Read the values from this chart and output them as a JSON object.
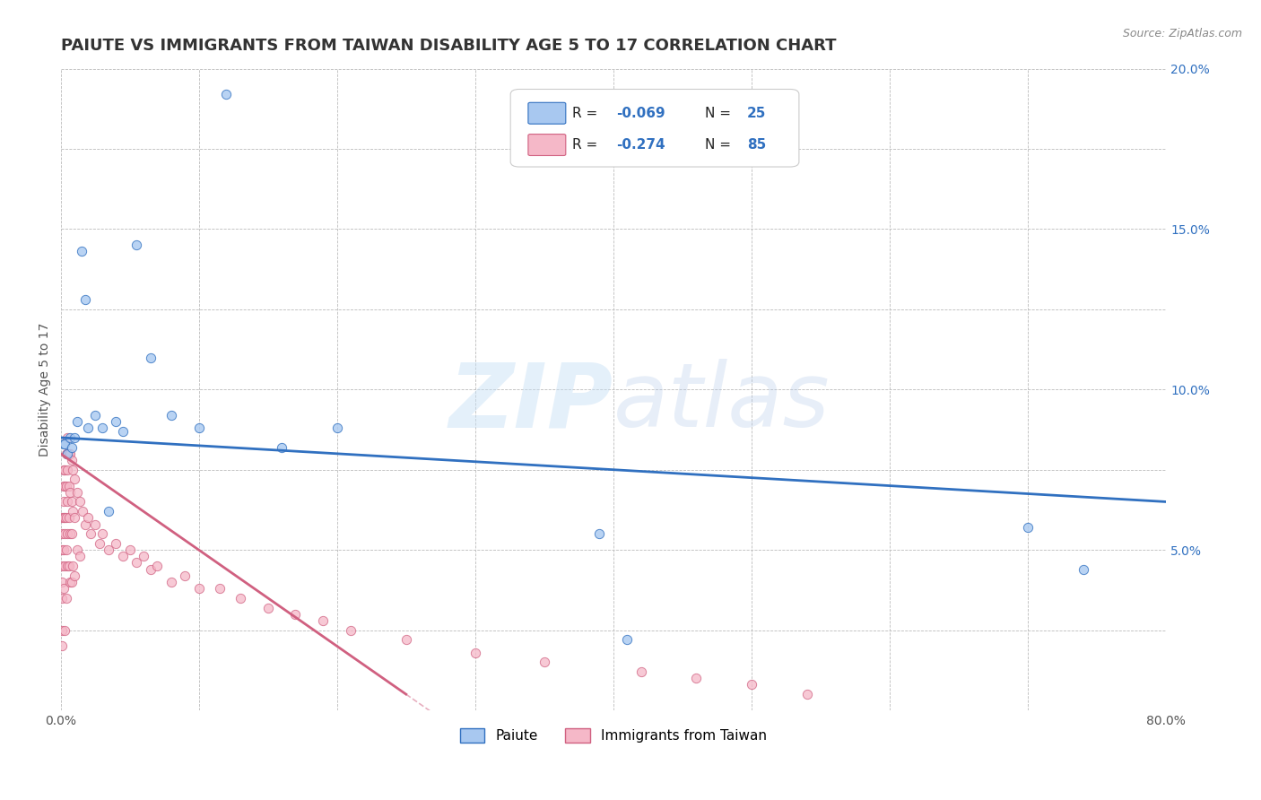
{
  "title": "PAIUTE VS IMMIGRANTS FROM TAIWAN DISABILITY AGE 5 TO 17 CORRELATION CHART",
  "source": "Source: ZipAtlas.com",
  "ylabel": "Disability Age 5 to 17",
  "xlim": [
    0,
    0.8
  ],
  "ylim": [
    0,
    0.2
  ],
  "paiute_color": "#a8c8f0",
  "taiwan_color": "#f5b8c8",
  "paiute_line_color": "#3070c0",
  "taiwan_line_color": "#d06080",
  "watermark_zip": "ZIP",
  "watermark_atlas": "atlas",
  "legend_label_paiute": "Paiute",
  "legend_label_taiwan": "Immigrants from Taiwan",
  "background_color": "#ffffff",
  "grid_color": "#bbbbbb",
  "title_color": "#333333",
  "axis_color": "#555555",
  "value_color": "#3070c0",
  "title_fontsize": 13,
  "label_fontsize": 10,
  "tick_fontsize": 10,
  "legend_fontsize": 11,
  "paiute_x": [
    0.002,
    0.003,
    0.005,
    0.007,
    0.008,
    0.01,
    0.012,
    0.015,
    0.018,
    0.02,
    0.025,
    0.03,
    0.035,
    0.04,
    0.045,
    0.055,
    0.065,
    0.08,
    0.1,
    0.12,
    0.16,
    0.2,
    0.39,
    0.41,
    0.7,
    0.74
  ],
  "paiute_y": [
    0.083,
    0.083,
    0.08,
    0.085,
    0.082,
    0.085,
    0.09,
    0.143,
    0.128,
    0.088,
    0.092,
    0.088,
    0.062,
    0.09,
    0.087,
    0.145,
    0.11,
    0.092,
    0.088,
    0.192,
    0.082,
    0.088,
    0.055,
    0.022,
    0.057,
    0.044
  ],
  "taiwan_x": [
    0.001,
    0.001,
    0.001,
    0.001,
    0.001,
    0.001,
    0.001,
    0.001,
    0.002,
    0.002,
    0.002,
    0.002,
    0.002,
    0.002,
    0.003,
    0.003,
    0.003,
    0.003,
    0.003,
    0.003,
    0.004,
    0.004,
    0.004,
    0.004,
    0.004,
    0.005,
    0.005,
    0.005,
    0.005,
    0.005,
    0.005,
    0.006,
    0.006,
    0.006,
    0.006,
    0.007,
    0.007,
    0.007,
    0.007,
    0.008,
    0.008,
    0.008,
    0.008,
    0.009,
    0.009,
    0.009,
    0.01,
    0.01,
    0.01,
    0.012,
    0.012,
    0.014,
    0.014,
    0.016,
    0.018,
    0.02,
    0.022,
    0.025,
    0.028,
    0.03,
    0.035,
    0.04,
    0.045,
    0.05,
    0.055,
    0.06,
    0.065,
    0.07,
    0.08,
    0.09,
    0.1,
    0.115,
    0.13,
    0.15,
    0.17,
    0.19,
    0.21,
    0.25,
    0.3,
    0.35,
    0.42,
    0.46,
    0.5,
    0.54
  ],
  "taiwan_y": [
    0.06,
    0.055,
    0.05,
    0.045,
    0.04,
    0.035,
    0.025,
    0.02,
    0.075,
    0.07,
    0.065,
    0.06,
    0.05,
    0.038,
    0.075,
    0.07,
    0.06,
    0.055,
    0.045,
    0.025,
    0.08,
    0.07,
    0.06,
    0.05,
    0.035,
    0.085,
    0.08,
    0.075,
    0.065,
    0.055,
    0.045,
    0.08,
    0.07,
    0.06,
    0.045,
    0.08,
    0.068,
    0.055,
    0.04,
    0.078,
    0.065,
    0.055,
    0.04,
    0.075,
    0.062,
    0.045,
    0.072,
    0.06,
    0.042,
    0.068,
    0.05,
    0.065,
    0.048,
    0.062,
    0.058,
    0.06,
    0.055,
    0.058,
    0.052,
    0.055,
    0.05,
    0.052,
    0.048,
    0.05,
    0.046,
    0.048,
    0.044,
    0.045,
    0.04,
    0.042,
    0.038,
    0.038,
    0.035,
    0.032,
    0.03,
    0.028,
    0.025,
    0.022,
    0.018,
    0.015,
    0.012,
    0.01,
    0.008,
    0.005
  ]
}
